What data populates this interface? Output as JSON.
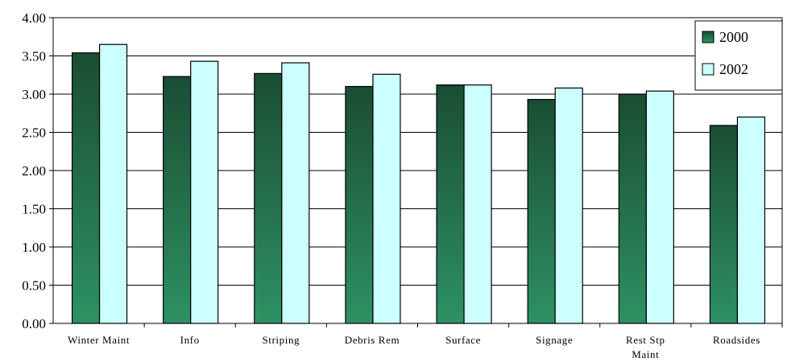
{
  "chart_data": {
    "type": "bar",
    "title": "",
    "xlabel": "",
    "ylabel": "",
    "categories": [
      "Winter Maint",
      "Info",
      "Striping",
      "Debris Rem",
      "Surface",
      "Signage",
      "Rest Stp Maint",
      "Roadsides"
    ],
    "category_lines": [
      [
        "Winter Maint"
      ],
      [
        "Info"
      ],
      [
        "Striping"
      ],
      [
        "Debris Rem"
      ],
      [
        "Surface"
      ],
      [
        "Signage"
      ],
      [
        "Rest Stp",
        "Maint"
      ],
      [
        "Roadsides"
      ]
    ],
    "series": [
      {
        "name": "2000",
        "values": [
          3.54,
          3.23,
          3.27,
          3.1,
          3.12,
          2.93,
          3.0,
          2.59
        ],
        "color": "#1a4d33",
        "color_bottom": "#2e9164"
      },
      {
        "name": "2002",
        "values": [
          3.65,
          3.43,
          3.41,
          3.26,
          3.12,
          3.08,
          3.04,
          2.7
        ],
        "color": "#ccffff"
      }
    ],
    "ylim": [
      0,
      4
    ],
    "y_ticks": [
      "0.00",
      "0.50",
      "1.00",
      "1.50",
      "2.00",
      "2.50",
      "3.00",
      "3.50",
      "4.00"
    ],
    "grid": true,
    "legend_position": "top-right"
  }
}
